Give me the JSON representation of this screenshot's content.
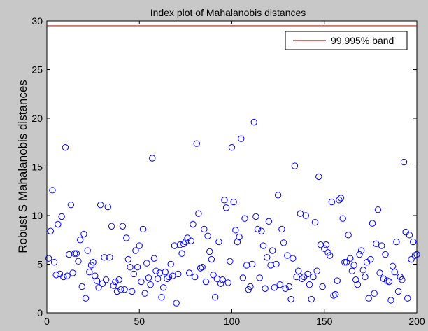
{
  "window": {
    "background": "#c8c8c8"
  },
  "chart_data": {
    "type": "scatter",
    "title": "Index plot of Mahalanobis distances",
    "xlabel": "",
    "ylabel": "Robust S Mahalanobis distances",
    "xlim": [
      0,
      200
    ],
    "ylim": [
      0,
      30
    ],
    "xticks": [
      0,
      50,
      100,
      150,
      200
    ],
    "yticks": [
      0,
      5,
      10,
      15,
      20,
      25,
      30
    ],
    "grid": false,
    "legend_position": "top-right",
    "marker": "open-circle",
    "marker_color": "#0000ff",
    "band_color": "#b22222",
    "band": {
      "label": "99.995% band",
      "y": 29.5
    },
    "series": [
      {
        "values": [
          [
            1,
            5.6
          ],
          [
            2,
            8.4
          ],
          [
            3,
            12.6
          ],
          [
            4,
            5.2
          ],
          [
            5,
            3.9
          ],
          [
            6,
            9.1
          ],
          [
            7,
            4.0
          ],
          [
            8,
            9.9
          ],
          [
            9,
            3.7
          ],
          [
            10,
            17.0
          ],
          [
            11,
            3.8
          ],
          [
            12,
            6.0
          ],
          [
            13,
            11.1
          ],
          [
            14,
            4.1
          ],
          [
            15,
            6.1
          ],
          [
            16,
            6.1
          ],
          [
            17,
            5.3
          ],
          [
            18,
            7.5
          ],
          [
            19,
            2.7
          ],
          [
            20,
            8.1
          ],
          [
            21,
            1.5
          ],
          [
            22,
            6.4
          ],
          [
            23,
            4.2
          ],
          [
            24,
            4.9
          ],
          [
            25,
            5.2
          ],
          [
            26,
            3.8
          ],
          [
            27,
            3.3
          ],
          [
            28,
            2.6
          ],
          [
            29,
            11.1
          ],
          [
            30,
            3.0
          ],
          [
            31,
            5.7
          ],
          [
            32,
            3.4
          ],
          [
            33,
            10.9
          ],
          [
            34,
            5.7
          ],
          [
            35,
            8.9
          ],
          [
            36,
            2.8
          ],
          [
            37,
            3.2
          ],
          [
            38,
            2.2
          ],
          [
            39,
            3.4
          ],
          [
            40,
            2.4
          ],
          [
            41,
            8.9
          ],
          [
            42,
            2.4
          ],
          [
            43,
            7.7
          ],
          [
            44,
            5.5
          ],
          [
            45,
            4.7
          ],
          [
            46,
            2.2
          ],
          [
            47,
            4.0
          ],
          [
            48,
            6.4
          ],
          [
            49,
            4.7
          ],
          [
            50,
            6.9
          ],
          [
            51,
            3.2
          ],
          [
            52,
            8.6
          ],
          [
            53,
            2.0
          ],
          [
            54,
            5.1
          ],
          [
            55,
            3.6
          ],
          [
            56,
            2.9
          ],
          [
            57,
            15.9
          ],
          [
            58,
            5.6
          ],
          [
            59,
            4.3
          ],
          [
            60,
            3.5
          ],
          [
            61,
            4.1
          ],
          [
            62,
            1.6
          ],
          [
            63,
            2.6
          ],
          [
            64,
            4.2
          ],
          [
            65,
            3.5
          ],
          [
            66,
            3.7
          ],
          [
            67,
            5.0
          ],
          [
            68,
            3.8
          ],
          [
            69,
            6.9
          ],
          [
            70,
            1.0
          ],
          [
            71,
            4.0
          ],
          [
            72,
            7.0
          ],
          [
            73,
            6.1
          ],
          [
            74,
            7.1
          ],
          [
            75,
            7.3
          ],
          [
            76,
            7.7
          ],
          [
            77,
            4.1
          ],
          [
            78,
            7.4
          ],
          [
            79,
            9.1
          ],
          [
            80,
            3.7
          ],
          [
            81,
            17.4
          ],
          [
            82,
            10.2
          ],
          [
            83,
            4.6
          ],
          [
            84,
            4.7
          ],
          [
            85,
            8.6
          ],
          [
            86,
            3.2
          ],
          [
            87,
            7.9
          ],
          [
            88,
            6.3
          ],
          [
            89,
            5.5
          ],
          [
            90,
            3.9
          ],
          [
            91,
            1.6
          ],
          [
            92,
            3.5
          ],
          [
            93,
            7.3
          ],
          [
            94,
            3.0
          ],
          [
            95,
            3.4
          ],
          [
            96,
            11.6
          ],
          [
            97,
            10.8
          ],
          [
            98,
            3.1
          ],
          [
            99,
            5.3
          ],
          [
            100,
            17.0
          ],
          [
            101,
            11.4
          ],
          [
            102,
            8.5
          ],
          [
            103,
            7.3
          ],
          [
            104,
            7.8
          ],
          [
            105,
            17.9
          ],
          [
            106,
            3.6
          ],
          [
            107,
            9.7
          ],
          [
            108,
            4.9
          ],
          [
            109,
            2.4
          ],
          [
            110,
            2.7
          ],
          [
            111,
            5.0
          ],
          [
            112,
            19.6
          ],
          [
            113,
            9.9
          ],
          [
            114,
            8.6
          ],
          [
            115,
            3.6
          ],
          [
            116,
            8.4
          ],
          [
            117,
            6.9
          ],
          [
            118,
            2.5
          ],
          [
            119,
            5.7
          ],
          [
            120,
            9.4
          ],
          [
            121,
            4.9
          ],
          [
            122,
            6.4
          ],
          [
            123,
            2.6
          ],
          [
            124,
            5.0
          ],
          [
            125,
            12.1
          ],
          [
            126,
            2.9
          ],
          [
            127,
            8.6
          ],
          [
            128,
            7.2
          ],
          [
            129,
            2.5
          ],
          [
            130,
            5.9
          ],
          [
            131,
            2.7
          ],
          [
            132,
            1.4
          ],
          [
            133,
            5.6
          ],
          [
            134,
            15.1
          ],
          [
            135,
            3.7
          ],
          [
            136,
            4.3
          ],
          [
            137,
            10.2
          ],
          [
            138,
            3.5
          ],
          [
            139,
            3.7
          ],
          [
            140,
            10.0
          ],
          [
            141,
            4.0
          ],
          [
            142,
            2.9
          ],
          [
            143,
            1.4
          ],
          [
            144,
            3.7
          ],
          [
            145,
            9.3
          ],
          [
            146,
            4.3
          ],
          [
            147,
            14.0
          ],
          [
            148,
            7.0
          ],
          [
            149,
            2.7
          ],
          [
            150,
            6.6
          ],
          [
            151,
            7.0
          ],
          [
            152,
            6.2
          ],
          [
            153,
            5.9
          ],
          [
            154,
            11.4
          ],
          [
            155,
            1.8
          ],
          [
            156,
            1.9
          ],
          [
            157,
            3.3
          ],
          [
            158,
            11.6
          ],
          [
            159,
            11.8
          ],
          [
            160,
            9.7
          ],
          [
            161,
            5.2
          ],
          [
            162,
            5.2
          ],
          [
            163,
            8.0
          ],
          [
            164,
            5.6
          ],
          [
            165,
            4.3
          ],
          [
            166,
            4.9
          ],
          [
            167,
            3.4
          ],
          [
            168,
            2.9
          ],
          [
            169,
            6.0
          ],
          [
            170,
            6.4
          ],
          [
            171,
            4.4
          ],
          [
            172,
            3.7
          ],
          [
            173,
            5.2
          ],
          [
            174,
            1.5
          ],
          [
            175,
            5.5
          ],
          [
            176,
            9.2
          ],
          [
            177,
            2.0
          ],
          [
            178,
            7.1
          ],
          [
            179,
            10.6
          ],
          [
            180,
            4.1
          ],
          [
            181,
            6.9
          ],
          [
            182,
            3.5
          ],
          [
            183,
            6.0
          ],
          [
            184,
            3.3
          ],
          [
            185,
            3.2
          ],
          [
            186,
            1.3
          ],
          [
            187,
            4.8
          ],
          [
            188,
            4.2
          ],
          [
            189,
            7.3
          ],
          [
            190,
            2.2
          ],
          [
            191,
            3.7
          ],
          [
            192,
            3.4
          ],
          [
            193,
            15.5
          ],
          [
            194,
            8.3
          ],
          [
            195,
            1.5
          ],
          [
            196,
            8.0
          ],
          [
            197,
            5.5
          ],
          [
            198,
            7.3
          ],
          [
            199,
            5.9
          ],
          [
            200,
            6.0
          ]
        ]
      }
    ]
  }
}
